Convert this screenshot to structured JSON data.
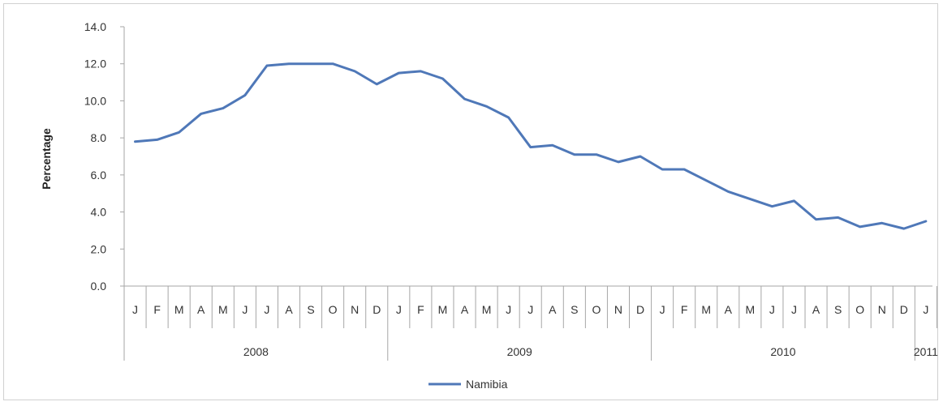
{
  "chart_data": {
    "type": "line",
    "title": "",
    "xlabel": "",
    "ylabel": "Percentage",
    "ylim": [
      0,
      14
    ],
    "yticks": [
      "0.0",
      "2.0",
      "4.0",
      "6.0",
      "8.0",
      "10.0",
      "12.0",
      "14.0"
    ],
    "categories": [
      "J",
      "F",
      "M",
      "A",
      "M",
      "J",
      "J",
      "A",
      "S",
      "O",
      "N",
      "D",
      "J",
      "F",
      "M",
      "A",
      "M",
      "J",
      "J",
      "A",
      "S",
      "O",
      "N",
      "D",
      "J",
      "F",
      "M",
      "A",
      "M",
      "J",
      "J",
      "A",
      "S",
      "O",
      "N",
      "D",
      "J"
    ],
    "groups": [
      {
        "label": "2008",
        "count": 12
      },
      {
        "label": "2009",
        "count": 12
      },
      {
        "label": "2010",
        "count": 12
      },
      {
        "label": "2011",
        "count": 1
      }
    ],
    "grid": false,
    "legend": "bottom-center",
    "series": [
      {
        "name": "Namibia",
        "color": "#4f78b8",
        "values": [
          7.8,
          7.9,
          8.3,
          9.3,
          9.6,
          10.3,
          11.9,
          12.0,
          12.0,
          12.0,
          11.6,
          10.9,
          11.5,
          11.6,
          11.2,
          10.1,
          9.7,
          9.1,
          7.5,
          7.6,
          7.1,
          7.1,
          6.7,
          7.0,
          6.3,
          6.3,
          5.7,
          5.1,
          4.7,
          4.3,
          4.6,
          3.6,
          3.7,
          3.2,
          3.4,
          3.1,
          3.5
        ]
      }
    ]
  }
}
